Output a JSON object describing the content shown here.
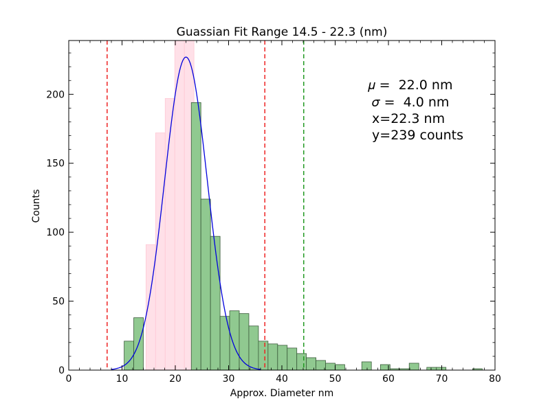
{
  "chart_data": {
    "type": "bar",
    "title": "Guassian Fit Range   14.5 - 22.3 (nm)",
    "xlabel": "Approx. Diameter nm",
    "ylabel": "Counts",
    "xlim": [
      0,
      80
    ],
    "ylim": [
      0,
      239
    ],
    "xticks": [
      "0",
      "10",
      "20",
      "30",
      "40",
      "50",
      "60",
      "70",
      "80"
    ],
    "yticks": [
      "0",
      "50",
      "100",
      "150",
      "200"
    ],
    "bin_width": 1.8,
    "fit_bins": {
      "color": "#ffe0e8",
      "left_edges": [
        14.5,
        16.3,
        18.1,
        19.9,
        21.7
      ],
      "values": [
        91,
        172,
        197,
        239,
        239
      ]
    },
    "histogram": {
      "color": "#90c990",
      "left_edges": [
        10.4,
        12.2,
        23.0,
        24.8,
        26.6,
        28.4,
        30.2,
        32.0,
        33.8,
        35.6,
        37.4,
        39.2,
        41.0,
        42.8,
        44.6,
        46.4,
        48.2,
        50.0,
        55.0,
        58.5,
        60.3,
        62.1,
        63.9,
        67.2,
        69.0,
        75.8
      ],
      "values": [
        21,
        38,
        194,
        124,
        97,
        39,
        43,
        41,
        32,
        21,
        19,
        18,
        16,
        12,
        9,
        7,
        5,
        4,
        6,
        4,
        1,
        1,
        5,
        2,
        2,
        1
      ]
    },
    "gaussian_fit": {
      "mu": 22.0,
      "sigma": 4.0,
      "peak": 227,
      "color": "#0000dd"
    },
    "vlines": [
      {
        "x": 7.2,
        "color": "#ee2222"
      },
      {
        "x": 36.8,
        "color": "#ee2222"
      },
      {
        "x": 44.1,
        "color": "#229922"
      }
    ],
    "annotations": [
      "𝜇 =  22.0 nm",
      " 𝜎 =  4.0 nm",
      " x=22.3 nm",
      " y=239 counts"
    ],
    "grid": false
  }
}
